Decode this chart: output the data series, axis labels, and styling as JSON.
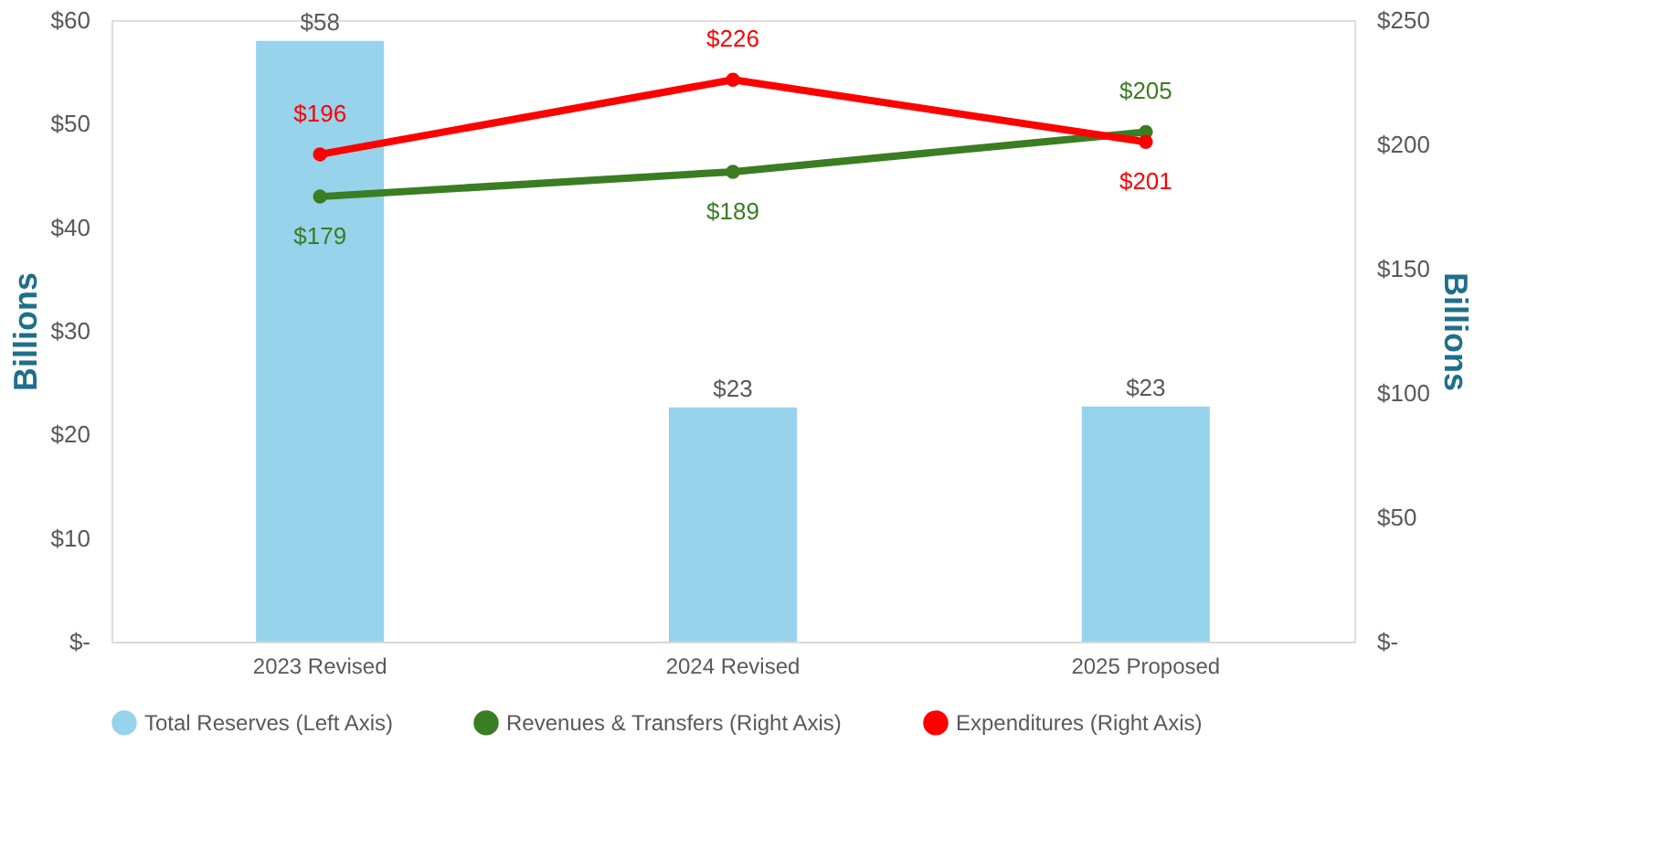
{
  "chart_data": {
    "type": "bar",
    "categories": [
      "2023 Revised",
      "2024 Revised",
      "2025 Proposed"
    ],
    "ylabel": "Billions",
    "y2label": "Billions",
    "ylim": [
      0,
      60
    ],
    "yticks": [
      {
        "value": 0,
        "label": "$-"
      },
      {
        "value": 10,
        "label": "$10"
      },
      {
        "value": 20,
        "label": "$20"
      },
      {
        "value": 30,
        "label": "$30"
      },
      {
        "value": 40,
        "label": "$40"
      },
      {
        "value": 50,
        "label": "$50"
      },
      {
        "value": 60,
        "label": "$60"
      }
    ],
    "y2lim": [
      0,
      250
    ],
    "y2ticks": [
      {
        "value": 0,
        "label": "$-"
      },
      {
        "value": 50,
        "label": "$50"
      },
      {
        "value": 100,
        "label": "$100"
      },
      {
        "value": 150,
        "label": "$150"
      },
      {
        "value": 200,
        "label": "$200"
      },
      {
        "value": 250,
        "label": "$250"
      }
    ],
    "series": [
      {
        "name": "Total Reserves (Left Axis)",
        "color": "#97d3ea",
        "values": [
          58,
          22.6,
          22.7
        ],
        "value_labels": [
          "$58",
          "$23",
          "$23"
        ]
      },
      {
        "name": "Revenues & Transfers (Right Axis)",
        "type": "line",
        "axis": "y2",
        "color": "#3a7d22",
        "values": [
          179,
          189,
          205
        ],
        "value_labels": [
          "$179",
          "$189",
          "$205"
        ]
      },
      {
        "name": "Expenditures (Right Axis)",
        "type": "line",
        "axis": "y2",
        "color": "#ff0000",
        "values": [
          196,
          226,
          201
        ],
        "value_labels": [
          "$196",
          "$226",
          "$201"
        ]
      }
    ],
    "marker": "circle",
    "line_style": "solid",
    "grid": false,
    "legend": "bottom"
  }
}
